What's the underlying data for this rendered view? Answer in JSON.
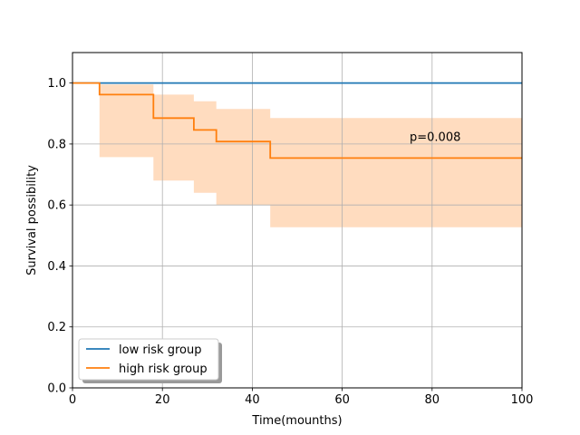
{
  "chart_data": {
    "type": "line",
    "subtype": "kaplan-meier step",
    "xlabel": "Time(mounths)",
    "ylabel": "Survival possibility",
    "xlim": [
      0,
      100
    ],
    "ylim": [
      0,
      1.1
    ],
    "xticks": [
      0,
      20,
      40,
      60,
      80,
      100
    ],
    "xtick_labels": [
      "0",
      "20",
      "40",
      "60",
      "80",
      "100"
    ],
    "yticks": [
      0.0,
      0.2,
      0.4,
      0.6,
      0.8,
      1.0
    ],
    "ytick_labels": [
      "0.0",
      "0.2",
      "0.4",
      "0.6",
      "0.8",
      "1.0"
    ],
    "grid": true,
    "legend_position": "lower-left",
    "series": [
      {
        "name": "low risk group",
        "color": "#1f77b4",
        "x": [
          0,
          100
        ],
        "y": [
          1.0,
          1.0
        ]
      },
      {
        "name": "high risk group",
        "color": "#ff7f0e",
        "ci_color": "#ffdcbf",
        "x": [
          0,
          6,
          18,
          27,
          32,
          44,
          100
        ],
        "y": [
          1.0,
          0.962,
          0.885,
          0.846,
          0.808,
          0.754,
          0.754
        ],
        "ci_lower": [
          1.0,
          0.757,
          0.68,
          0.64,
          0.6,
          0.527,
          0.527
        ],
        "ci_upper": [
          1.0,
          0.995,
          0.962,
          0.94,
          0.915,
          0.885,
          0.885
        ]
      }
    ],
    "annotations": [
      {
        "text": "p=0.008",
        "x": 75,
        "y": 0.81
      }
    ]
  }
}
